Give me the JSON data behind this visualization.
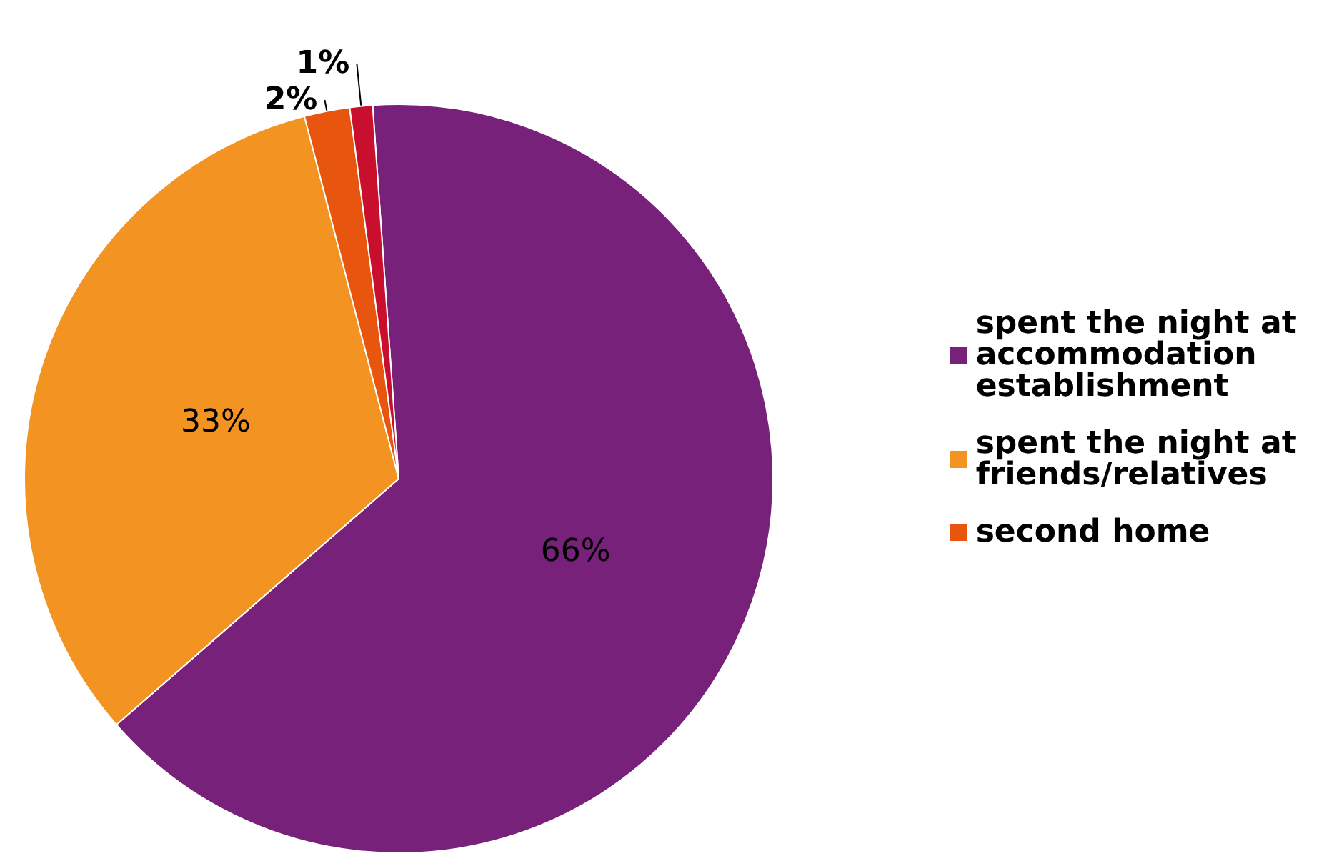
{
  "chart_data": {
    "type": "pie",
    "categories": [
      "spent the night at accommodation establishment",
      "spent the night at friends/relatives",
      "second home",
      null
    ],
    "values": [
      66,
      33,
      2,
      1
    ],
    "colors": [
      "#77217b",
      "#f39322",
      "#e8550f",
      "#c8102e"
    ],
    "value_labels": [
      "66%",
      "33%",
      "2%",
      "1%"
    ],
    "legend": "right"
  }
}
